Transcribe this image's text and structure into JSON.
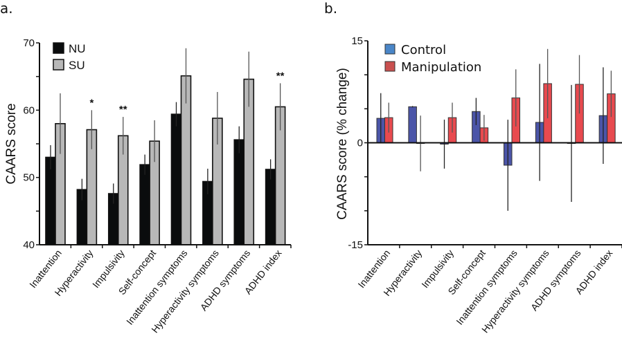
{
  "chart_data": [
    {
      "panel": "a.",
      "type": "bar",
      "title": "",
      "xlabel": "",
      "ylabel": "CAARS score",
      "ylim": [
        40,
        70
      ],
      "yticks": [
        40,
        45,
        50,
        55,
        60,
        65,
        70
      ],
      "ytick_labels": [
        "40",
        "",
        "50",
        "",
        "60",
        "",
        "70"
      ],
      "grid": false,
      "legend_position": "top-left",
      "categories": [
        "Inattention",
        "Hyperactivity",
        "Impulsivity",
        "Self-concept",
        "Inattention symptoms",
        "Hyperactivity symptoms",
        "ADHD symptoms",
        "ADHD index"
      ],
      "series": [
        {
          "name": "NU",
          "color": "#0a0c0d",
          "values": [
            53.0,
            48.2,
            47.6,
            51.9,
            59.4,
            49.4,
            55.6,
            51.2
          ],
          "error": [
            1.8,
            1.6,
            1.5,
            1.5,
            1.8,
            1.9,
            2.0,
            1.5
          ]
        },
        {
          "name": "SU",
          "color": "#b8b8b8",
          "values": [
            58.0,
            57.1,
            56.2,
            55.4,
            65.1,
            58.8,
            64.6,
            60.5
          ],
          "error": [
            4.5,
            2.9,
            2.8,
            3.1,
            4.1,
            3.9,
            4.1,
            3.5
          ]
        }
      ],
      "annotations": [
        "",
        "*",
        "**",
        "",
        "",
        "",
        "",
        "**"
      ]
    },
    {
      "panel": "b.",
      "type": "bar",
      "title": "",
      "xlabel": "",
      "ylabel": "CAARS score (% change)",
      "ylim": [
        -15,
        15
      ],
      "yticks": [
        -15,
        -10,
        -5,
        0,
        5,
        10,
        15
      ],
      "ytick_labels": [
        "-15",
        "",
        "",
        "0",
        "",
        "",
        "15"
      ],
      "grid": false,
      "legend_position": "top-left",
      "categories": [
        "Inattention",
        "Hyperactivity",
        "Impulsivity",
        "Self-concept",
        "Inattention symptoms",
        "Hyperactivity symptoms",
        "ADHD symptoms",
        "ADHD index"
      ],
      "series": [
        {
          "name": "Control",
          "color": "#4b55a8",
          "legend_color": "#4a86c8",
          "values": [
            3.6,
            5.3,
            -0.2,
            4.6,
            -3.3,
            3.0,
            -0.1,
            4.0
          ],
          "error": [
            3.7,
            0.1,
            3.6,
            2.0,
            6.7,
            8.6,
            8.6,
            7.1
          ]
        },
        {
          "name": "Manipulation",
          "color": "#e84a4f",
          "legend_color": "#c9504f",
          "values": [
            3.7,
            -0.1,
            3.7,
            2.2,
            6.6,
            8.7,
            8.6,
            7.2
          ],
          "error": [
            2.2,
            4.1,
            2.2,
            1.9,
            4.2,
            5.1,
            4.3,
            3.4
          ]
        }
      ],
      "annotations": [
        "",
        "",
        "",
        "",
        "",
        "",
        "",
        ""
      ]
    }
  ]
}
